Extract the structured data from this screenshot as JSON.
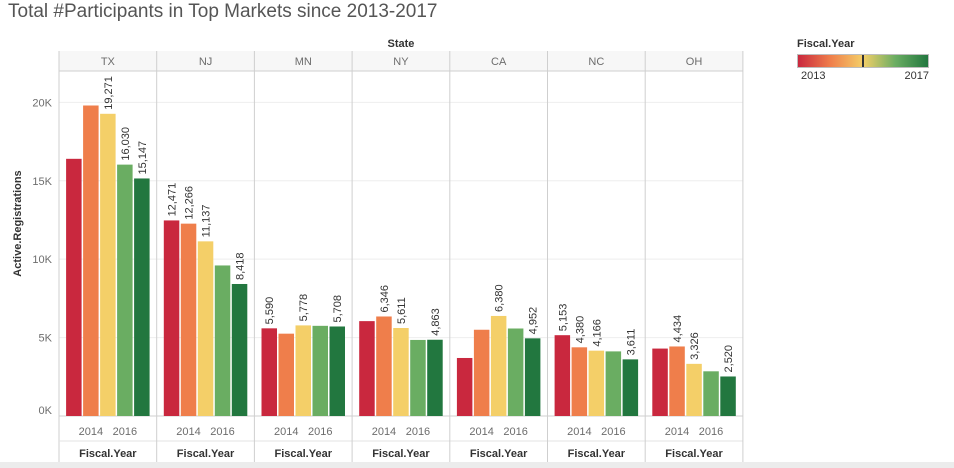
{
  "title": "Total #Participants in Top Markets since 2013-2017",
  "colors": {
    "2013": "#c9283e",
    "2014": "#ef7e4b",
    "2015": "#f4cf68",
    "2016": "#6aad62",
    "2017": "#22773f",
    "axis_text": "#6d6d6d",
    "gridline": "#eeeeee",
    "divider": "#cfcfcf"
  },
  "legend": {
    "title": "Fiscal.Year",
    "min_label": "2013",
    "max_label": "2017",
    "gradient": [
      "#c9283e",
      "#ef7e4b",
      "#f4cf68",
      "#6aad62",
      "#22773f"
    ]
  },
  "chart_data": {
    "type": "bar",
    "column_header": "State",
    "xlabel": "Fiscal.Year",
    "ylabel": "Active.Registrations",
    "ylim": [
      0,
      22000
    ],
    "y_ticks": [
      0,
      5000,
      10000,
      15000,
      20000
    ],
    "y_tick_labels": [
      "0K",
      "5K",
      "10K",
      "15K",
      "20K"
    ],
    "x_tick_labels": [
      "2014",
      "2016"
    ],
    "years": [
      "2013",
      "2014",
      "2015",
      "2016",
      "2017"
    ],
    "grid": true,
    "legend_position": "top-right",
    "panels": [
      {
        "state": "TX",
        "values": [
          16400,
          19800,
          19271,
          16030,
          15147
        ],
        "labels": [
          "",
          "",
          "19,271",
          "16,030",
          "15,147"
        ]
      },
      {
        "state": "NJ",
        "values": [
          12471,
          12266,
          11137,
          9600,
          8418
        ],
        "labels": [
          "12,471",
          "12,266",
          "11,137",
          "",
          "8,418"
        ]
      },
      {
        "state": "MN",
        "values": [
          5590,
          5250,
          5778,
          5750,
          5708
        ],
        "labels": [
          "5,590",
          "",
          "5,778",
          "",
          "5,708"
        ]
      },
      {
        "state": "NY",
        "values": [
          6050,
          6346,
          5611,
          4850,
          4863
        ],
        "labels": [
          "",
          "6,346",
          "5,611",
          "",
          "4,863"
        ]
      },
      {
        "state": "CA",
        "values": [
          3700,
          5500,
          6380,
          5580,
          4952
        ],
        "labels": [
          "",
          "",
          "6,380",
          "",
          "4,952"
        ]
      },
      {
        "state": "NC",
        "values": [
          5153,
          4380,
          4166,
          4120,
          3611
        ],
        "labels": [
          "5,153",
          "4,380",
          "4,166",
          "",
          "3,611"
        ]
      },
      {
        "state": "OH",
        "values": [
          4300,
          4434,
          3326,
          2850,
          2520
        ],
        "labels": [
          "",
          "4,434",
          "3,326",
          "",
          "2,520"
        ]
      }
    ]
  }
}
